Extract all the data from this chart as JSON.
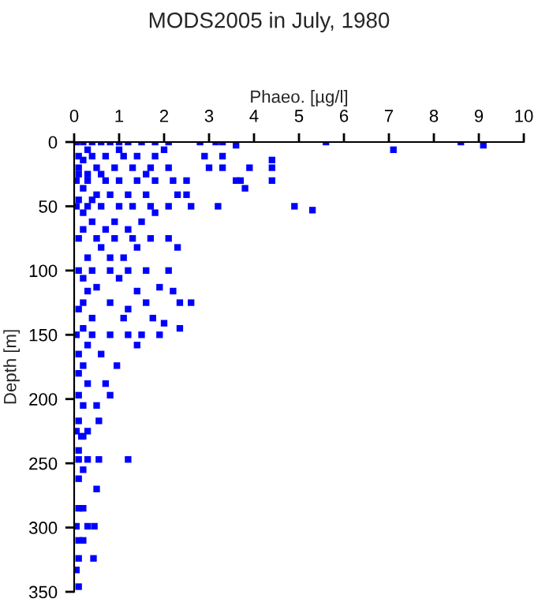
{
  "chart_data": {
    "type": "scatter",
    "title": "MODS2005 in July, 1980",
    "xlabel": "Phaeo. [µg/l]",
    "ylabel": "Depth [m]",
    "xlim": [
      0,
      10
    ],
    "xticks": [
      0,
      1,
      2,
      3,
      4,
      5,
      6,
      7,
      8,
      9,
      10
    ],
    "ylim": [
      350,
      0
    ],
    "yticks": [
      0,
      50,
      100,
      150,
      200,
      250,
      300,
      350
    ],
    "grid": false,
    "legend": false,
    "marker": "square",
    "series": [
      {
        "color": "#0000ff",
        "x": [
          0.05,
          0.2,
          0.4,
          0.6,
          0.8,
          1.0,
          1.2,
          1.5,
          1.8,
          2.1,
          2.8,
          3.15,
          3.3,
          5.6,
          8.6,
          3.6,
          9.1,
          7.1,
          0.3,
          1.0,
          2.0,
          0.1,
          0.4,
          0.7,
          1.1,
          1.4,
          1.8,
          2.9,
          3.3,
          4.4,
          0.2,
          0.1,
          0.5,
          0.9,
          1.3,
          1.7,
          2.1,
          3.0,
          3.3,
          3.9,
          4.4,
          0.1,
          0.3,
          0.6,
          1.6,
          0.05,
          0.3,
          0.7,
          1.0,
          1.4,
          1.8,
          2.2,
          2.5,
          3.6,
          3.7,
          4.4,
          3.8,
          0.2,
          0.5,
          0.8,
          1.2,
          1.6,
          2.3,
          2.5,
          0.1,
          0.4,
          0.05,
          0.3,
          0.6,
          1.0,
          1.3,
          1.7,
          2.1,
          2.6,
          3.2,
          4.9,
          5.3,
          1.8,
          0.2,
          0.4,
          0.9,
          1.5,
          0.2,
          0.7,
          1.2,
          0.1,
          0.5,
          0.9,
          1.3,
          1.7,
          2.1,
          2.3,
          0.6,
          1.4,
          0.3,
          0.8,
          1.1,
          0.1,
          0.4,
          0.8,
          1.2,
          1.6,
          2.1,
          0.2,
          1.0,
          1.9,
          0.5,
          2.2,
          1.4,
          0.3,
          2.6,
          2.35,
          1.6,
          0.2,
          0.8,
          0.1,
          1.2,
          1.1,
          1.75,
          0.4,
          2.0,
          2.35,
          0.2,
          0.05,
          0.4,
          0.8,
          1.2,
          1.5,
          1.9,
          1.4,
          0.3,
          0.1,
          0.6,
          0.95,
          0.2,
          0.1,
          0.7,
          0.3,
          0.8,
          0.1,
          0.2,
          0.5,
          0.55,
          0.1,
          0.05,
          0.3,
          0.2,
          0.16,
          0.1,
          0.55,
          1.2,
          0.1,
          0.3,
          0.2,
          0.1,
          0.5,
          0.1,
          0.2,
          0.45,
          0.05,
          0.3,
          0.1,
          0.2,
          0.43,
          0.1,
          0.05,
          0.1
        ],
        "values": [
          0,
          0,
          0,
          0,
          0,
          0,
          0,
          0,
          0,
          0,
          0,
          0,
          0,
          0,
          0,
          2.5,
          2.5,
          6,
          6,
          6,
          6,
          11,
          11,
          11,
          11,
          11,
          11,
          11,
          11,
          14,
          14,
          20,
          20,
          20,
          20,
          20,
          20,
          20,
          20,
          20,
          20,
          25,
          25,
          25,
          25,
          30,
          30,
          30,
          30,
          30,
          30,
          30,
          30,
          30,
          30,
          30,
          36,
          36,
          41,
          41,
          41,
          41,
          41,
          41,
          45,
          45,
          50,
          50,
          50,
          50,
          50,
          50,
          50,
          50,
          50,
          50,
          53,
          55,
          55,
          62,
          62,
          62,
          68,
          68,
          68,
          75,
          75,
          75,
          75,
          75,
          75,
          82,
          82,
          82,
          90,
          90,
          90,
          100,
          100,
          100,
          100,
          100,
          100,
          106,
          106,
          113,
          113,
          116,
          116,
          116,
          125,
          125,
          125,
          125,
          125,
          130,
          130,
          137,
          137,
          137,
          141,
          145,
          145,
          150,
          150,
          150,
          150,
          150,
          150,
          158,
          158,
          165,
          165,
          174,
          174,
          180,
          188,
          188,
          197,
          197,
          205,
          205,
          217,
          217,
          225,
          225,
          229,
          229,
          240,
          247,
          247,
          247,
          247,
          255,
          262,
          270,
          285,
          285,
          299,
          299,
          299,
          310,
          310,
          324,
          324,
          333,
          346
        ]
      }
    ]
  }
}
